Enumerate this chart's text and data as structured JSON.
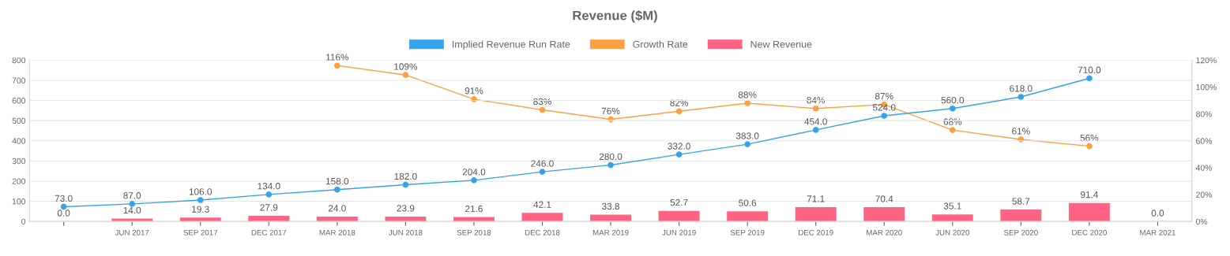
{
  "chart_data": {
    "type": "bar",
    "title": "Revenue ($M)",
    "categories": [
      null,
      "JUN 2017",
      "SEP 2017",
      "DEC 2017",
      "MAR 2018",
      "JUN 2018",
      "SEP 2018",
      "DEC 2018",
      "MAR 2019",
      "JUN 2019",
      "SEP 2019",
      "DEC 2019",
      "MAR 2020",
      "JUN 2020",
      "SEP 2020",
      "DEC 2020",
      "MAR 2021"
    ],
    "series": [
      {
        "name": "Implied Revenue Run Rate",
        "type": "line",
        "color": "#36a2eb",
        "values": [
          73,
          87,
          106,
          134,
          158,
          182,
          204,
          246,
          280,
          332,
          383,
          454,
          524,
          560,
          618,
          710,
          null
        ],
        "value_labels": [
          "73.0",
          "87.0",
          "106.0",
          "134.0",
          "158.0",
          "182.0",
          "204.0",
          "246.0",
          "280.0",
          "332.0",
          "383.0",
          "454.0",
          "524.0",
          "560.0",
          "618.0",
          "710.0",
          null
        ]
      },
      {
        "name": "Growth Rate",
        "type": "line",
        "axis": "y2",
        "color": "#ff9f40",
        "values": [
          null,
          null,
          null,
          null,
          116,
          109,
          91,
          83,
          76,
          82,
          88,
          84,
          87,
          68,
          61,
          56,
          null
        ],
        "value_labels": [
          null,
          null,
          null,
          null,
          "116%",
          "109%",
          "91%",
          "83%",
          "76%",
          "82%",
          "88%",
          "84%",
          "87%",
          "68%",
          "61%",
          "56%",
          null
        ]
      },
      {
        "name": "New Revenue",
        "color": "#ff6384",
        "values": [
          0.0,
          14.0,
          19.3,
          27.9,
          24.0,
          23.9,
          21.6,
          42.1,
          33.8,
          52.7,
          50.6,
          71.1,
          70.4,
          35.1,
          58.7,
          91.4,
          0.0
        ],
        "value_labels": [
          "0.0",
          "14.0",
          "19.3",
          "27.9",
          "24.0",
          "23.9",
          "21.6",
          "42.1",
          "33.8",
          "52.7",
          "50.6",
          "71.1",
          "70.4",
          "35.1",
          "58.7",
          "91.4",
          "0.0"
        ]
      }
    ],
    "ylim": [
      0,
      800
    ],
    "yticks": [
      0,
      100,
      200,
      300,
      400,
      500,
      600,
      700,
      800
    ],
    "y2lim": [
      0,
      120
    ],
    "y2ticks": [
      {
        "value": 0,
        "label": "0%"
      },
      {
        "value": 20,
        "label": "20%"
      },
      {
        "value": 40,
        "label": "40%"
      },
      {
        "value": 60,
        "label": "60%"
      },
      {
        "value": 80,
        "label": "80%"
      },
      {
        "value": 100,
        "label": "100%"
      },
      {
        "value": 120,
        "label": "120%"
      }
    ],
    "grid": "y",
    "legend": "top",
    "marker": "circle"
  }
}
